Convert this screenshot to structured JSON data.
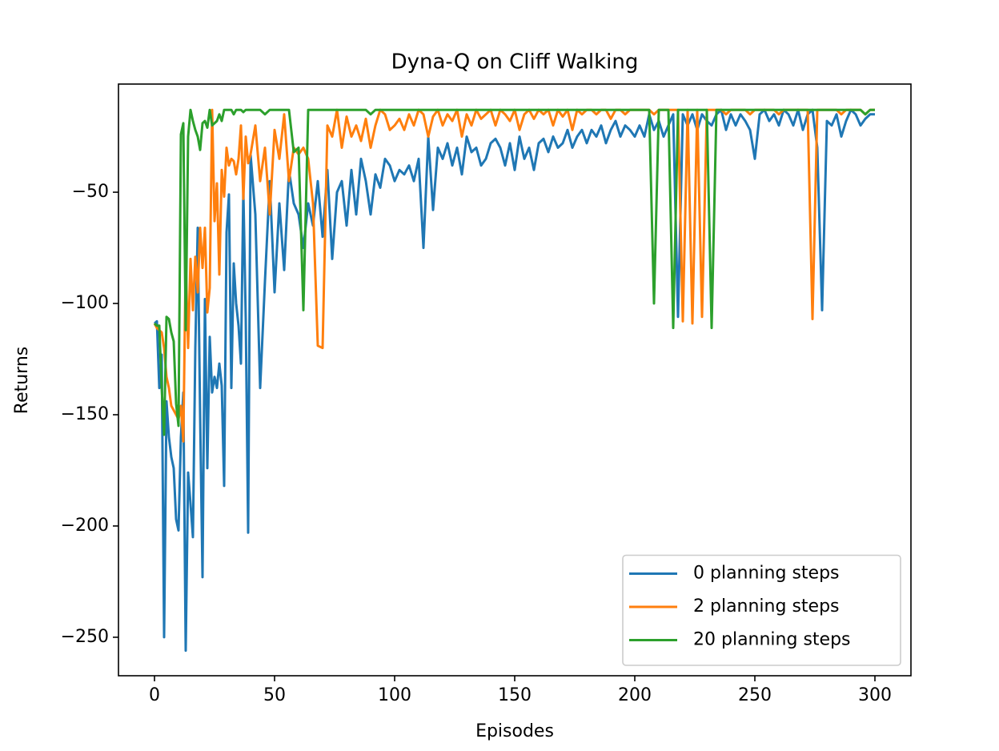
{
  "chart_data": {
    "type": "line",
    "title": "Dyna-Q on Cliff Walking",
    "xlabel": "Episodes",
    "ylabel": "Returns",
    "x": [
      0,
      1,
      2,
      3,
      4,
      5,
      6,
      7,
      8,
      9,
      10,
      11,
      12,
      13,
      14,
      15,
      16,
      17,
      18,
      19,
      20,
      21,
      22,
      23,
      24,
      25,
      26,
      27,
      28,
      29,
      30,
      31,
      32,
      33,
      34,
      35,
      36,
      37,
      38,
      39,
      40,
      42,
      44,
      46,
      48,
      50,
      52,
      54,
      56,
      58,
      60,
      62,
      64,
      66,
      68,
      70,
      72,
      74,
      76,
      78,
      80,
      82,
      84,
      86,
      88,
      90,
      92,
      94,
      96,
      98,
      100,
      102,
      104,
      106,
      108,
      110,
      112,
      114,
      116,
      118,
      120,
      122,
      124,
      126,
      128,
      130,
      132,
      134,
      136,
      138,
      140,
      142,
      144,
      146,
      148,
      150,
      152,
      154,
      156,
      158,
      160,
      162,
      164,
      166,
      168,
      170,
      172,
      174,
      176,
      178,
      180,
      182,
      184,
      186,
      188,
      190,
      192,
      194,
      196,
      198,
      200,
      202,
      204,
      206,
      208,
      210,
      212,
      214,
      216,
      218,
      220,
      222,
      224,
      226,
      228,
      230,
      232,
      234,
      236,
      238,
      240,
      242,
      244,
      246,
      248,
      250,
      252,
      254,
      256,
      258,
      260,
      262,
      264,
      266,
      268,
      270,
      272,
      274,
      276,
      278,
      280,
      282,
      284,
      286,
      288,
      290,
      292,
      294,
      296,
      298,
      300
    ],
    "series": [
      {
        "name": "0 planning steps",
        "color": "#1f77b4",
        "values": [
          -109,
          -108,
          -138,
          -123,
          -250,
          -144,
          -160,
          -169,
          -174,
          -197,
          -202,
          -160,
          -140,
          -256,
          -176,
          -190,
          -205,
          -120,
          -66,
          -150,
          -223,
          -98,
          -174,
          -115,
          -140,
          -133,
          -138,
          -127,
          -137,
          -182,
          -68,
          -51,
          -138,
          -82,
          -100,
          -110,
          -127,
          -49,
          -107,
          -203,
          -33,
          -60,
          -138,
          -90,
          -45,
          -95,
          -55,
          -85,
          -40,
          -55,
          -60,
          -75,
          -55,
          -65,
          -45,
          -70,
          -40,
          -80,
          -50,
          -45,
          -65,
          -40,
          -60,
          -35,
          -45,
          -60,
          -42,
          -48,
          -35,
          -38,
          -45,
          -40,
          -42,
          -38,
          -45,
          -35,
          -75,
          -25,
          -58,
          -30,
          -35,
          -28,
          -38,
          -30,
          -42,
          -25,
          -32,
          -30,
          -38,
          -35,
          -28,
          -26,
          -30,
          -38,
          -28,
          -40,
          -25,
          -35,
          -30,
          -40,
          -28,
          -26,
          -32,
          -25,
          -30,
          -28,
          -22,
          -30,
          -25,
          -22,
          -28,
          -22,
          -25,
          -20,
          -28,
          -22,
          -18,
          -25,
          -20,
          -22,
          -25,
          -20,
          -25,
          -15,
          -22,
          -18,
          -25,
          -20,
          -15,
          -106,
          -15,
          -20,
          -15,
          -22,
          -15,
          -18,
          -20,
          -15,
          -13,
          -22,
          -15,
          -20,
          -15,
          -18,
          -22,
          -35,
          -15,
          -13,
          -18,
          -15,
          -20,
          -13,
          -15,
          -20,
          -13,
          -22,
          -15,
          -13,
          -30,
          -103,
          -18,
          -20,
          -15,
          -25,
          -18,
          -13,
          -15,
          -20,
          -17,
          -15,
          -15
        ]
      },
      {
        "name": "2 planning steps",
        "color": "#ff7f0e",
        "values": [
          -109,
          -111,
          -112,
          -113,
          -120,
          -133,
          -138,
          -146,
          -148,
          -150,
          -152,
          -146,
          -162,
          -80,
          -120,
          -80,
          -103,
          -79,
          -95,
          -66,
          -84,
          -66,
          -104,
          -93,
          -13,
          -63,
          -46,
          -87,
          -40,
          -52,
          -30,
          -38,
          -35,
          -36,
          -42,
          -35,
          -20,
          -53,
          -25,
          -37,
          -33,
          -20,
          -45,
          -30,
          -60,
          -22,
          -35,
          -15,
          -45,
          -30,
          -33,
          -30,
          -35,
          -55,
          -119,
          -120,
          -20,
          -25,
          -13,
          -30,
          -16,
          -25,
          -20,
          -27,
          -17,
          -30,
          -20,
          -13,
          -15,
          -22,
          -20,
          -17,
          -22,
          -15,
          -20,
          -13,
          -15,
          -25,
          -16,
          -13,
          -20,
          -15,
          -18,
          -13,
          -25,
          -15,
          -20,
          -13,
          -17,
          -15,
          -13,
          -20,
          -13,
          -15,
          -18,
          -13,
          -22,
          -15,
          -13,
          -17,
          -13,
          -15,
          -13,
          -20,
          -13,
          -16,
          -13,
          -22,
          -13,
          -15,
          -13,
          -13,
          -15,
          -13,
          -13,
          -17,
          -13,
          -13,
          -15,
          -13,
          -13,
          -13,
          -13,
          -13,
          -15,
          -13,
          -13,
          -13,
          -13,
          -13,
          -108,
          -13,
          -109,
          -13,
          -106,
          -13,
          -13,
          -13,
          -13,
          -15,
          -13,
          -13,
          -13,
          -13,
          -15,
          -13,
          -13,
          -13,
          -13,
          -13,
          -15,
          -13,
          -13,
          -13,
          -13,
          -13,
          -13,
          -107,
          -13,
          -13,
          -13,
          -13,
          -13,
          -15,
          -13,
          -13,
          -13,
          -13,
          -15,
          -13,
          -13
        ]
      },
      {
        "name": "20 planning steps",
        "color": "#2ca02c",
        "values": [
          -109,
          -110,
          -110,
          -138,
          -159,
          -106,
          -107,
          -113,
          -117,
          -145,
          -155,
          -24,
          -19,
          -112,
          -25,
          -13,
          -18,
          -22,
          -25,
          -31,
          -19,
          -18,
          -21,
          -13,
          -20,
          -19,
          -18,
          -15,
          -18,
          -13,
          -13,
          -13,
          -13,
          -15,
          -13,
          -13,
          -13,
          -14,
          -13,
          -13,
          -13,
          -13,
          -13,
          -15,
          -13,
          -13,
          -13,
          -13,
          -13,
          -32,
          -30,
          -103,
          -13,
          -13,
          -13,
          -13,
          -13,
          -13,
          -13,
          -13,
          -13,
          -13,
          -13,
          -13,
          -13,
          -15,
          -13,
          -13,
          -13,
          -13,
          -13,
          -13,
          -13,
          -13,
          -13,
          -13,
          -13,
          -13,
          -13,
          -13,
          -13,
          -13,
          -13,
          -13,
          -13,
          -13,
          -13,
          -13,
          -13,
          -13,
          -13,
          -13,
          -13,
          -13,
          -13,
          -13,
          -13,
          -13,
          -13,
          -13,
          -13,
          -13,
          -13,
          -13,
          -13,
          -13,
          -13,
          -13,
          -13,
          -13,
          -13,
          -13,
          -13,
          -13,
          -13,
          -13,
          -13,
          -13,
          -13,
          -13,
          -13,
          -13,
          -13,
          -13,
          -100,
          -13,
          -13,
          -13,
          -111,
          -13,
          -13,
          -13,
          -13,
          -13,
          -13,
          -13,
          -111,
          -13,
          -13,
          -13,
          -13,
          -13,
          -13,
          -13,
          -13,
          -13,
          -13,
          -13,
          -13,
          -13,
          -13,
          -13,
          -13,
          -13,
          -13,
          -13,
          -13,
          -13,
          -13,
          -13,
          -13,
          -13,
          -13,
          -13,
          -13,
          -13,
          -13,
          -13,
          -15,
          -13,
          -13
        ]
      }
    ],
    "xlim": [
      -15,
      315
    ],
    "ylim": [
      -267.3,
      -1.4
    ],
    "xticks": [
      0,
      50,
      100,
      150,
      200,
      250,
      300
    ],
    "yticks": [
      {
        "value": -250,
        "label": "−250"
      },
      {
        "value": -200,
        "label": "−200"
      },
      {
        "value": -150,
        "label": "−150"
      },
      {
        "value": -100,
        "label": "−100"
      },
      {
        "value": -50,
        "label": "−50"
      }
    ],
    "legend": "lower right",
    "grid": false
  }
}
